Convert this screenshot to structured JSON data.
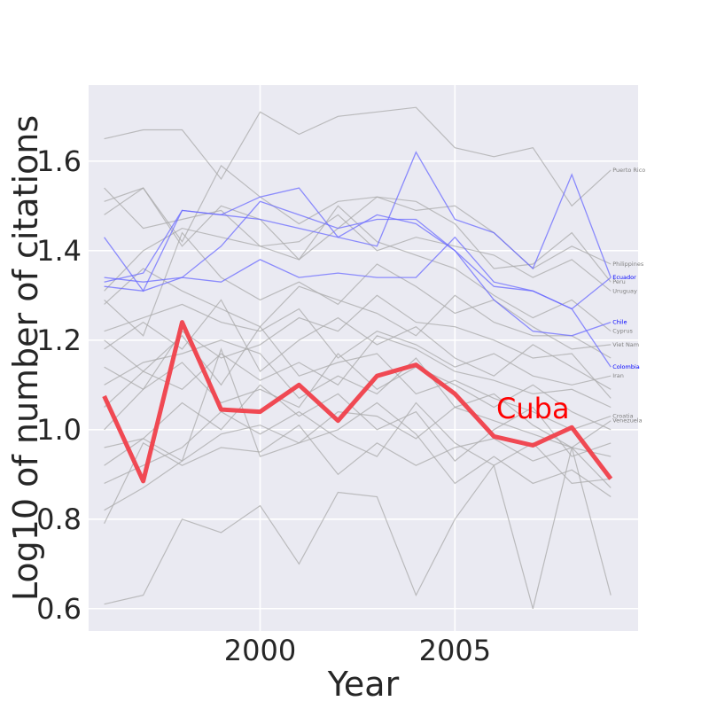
{
  "chart_data": {
    "type": "line",
    "title": "",
    "xlabel": "Year",
    "ylabel": "Log10 of number of citations",
    "x": [
      1996,
      1997,
      1998,
      1999,
      2000,
      2001,
      2002,
      2003,
      2004,
      2005,
      2006,
      2007,
      2008,
      2009
    ],
    "xlim": [
      1995.6,
      2009.7
    ],
    "ylim": [
      0.55,
      1.77
    ],
    "xticks": [
      2000,
      2005
    ],
    "xtick_labels": [
      "2000",
      "2005"
    ],
    "yticks": [
      0.6,
      0.8,
      1.0,
      1.2,
      1.4,
      1.6
    ],
    "ytick_labels": [
      "0.6",
      "0.8",
      "1.0",
      "1.2",
      "1.4",
      "1.6"
    ],
    "grid": true,
    "background": "#EAEAF2",
    "colors": {
      "gray": "#a9a9a9",
      "blue": "#6a6aff",
      "red": "#f0404a",
      "label_blue": "#0000ff",
      "label_gray": "#808080"
    },
    "highlight": {
      "name": "Cuba",
      "values": [
        1.075,
        0.885,
        1.24,
        1.045,
        1.04,
        1.1,
        1.02,
        1.12,
        1.145,
        1.08,
        0.985,
        0.965,
        1.005,
        0.89
      ],
      "label_x": 2007.0,
      "label_y": 1.025
    },
    "series": [
      {
        "name": "Puerto Rico",
        "color": "gray",
        "values": [
          1.65,
          1.67,
          1.67,
          1.56,
          1.71,
          1.66,
          1.7,
          1.71,
          1.72,
          1.63,
          1.61,
          1.63,
          1.5,
          1.58
        ]
      },
      {
        "name": "Philippines",
        "color": "gray",
        "values": [
          1.51,
          1.54,
          1.42,
          1.59,
          1.52,
          1.46,
          1.51,
          1.52,
          1.49,
          1.5,
          1.44,
          1.36,
          1.41,
          1.37
        ]
      },
      {
        "name": "Ecuador",
        "color": "blue",
        "values": [
          1.43,
          1.31,
          1.49,
          1.48,
          1.52,
          1.54,
          1.43,
          1.41,
          1.62,
          1.47,
          1.44,
          1.36,
          1.57,
          1.34
        ]
      },
      {
        "name": "Peru",
        "color": "gray",
        "values": [
          1.48,
          1.54,
          1.41,
          1.5,
          1.47,
          1.38,
          1.45,
          1.52,
          1.51,
          1.46,
          1.36,
          1.37,
          1.44,
          1.33
        ]
      },
      {
        "name": "Uruguay",
        "color": "gray",
        "values": [
          1.54,
          1.45,
          1.47,
          1.49,
          1.41,
          1.42,
          1.48,
          1.4,
          1.43,
          1.41,
          1.39,
          1.34,
          1.38,
          1.31
        ]
      },
      {
        "name": "",
        "color": "blue",
        "values": [
          1.34,
          1.33,
          1.34,
          1.33,
          1.38,
          1.34,
          1.35,
          1.34,
          1.34,
          1.43,
          1.33,
          1.31,
          1.27,
          1.34
        ]
      },
      {
        "name": "Chile",
        "color": "blue",
        "values": [
          1.33,
          1.35,
          1.49,
          1.48,
          1.47,
          1.45,
          1.43,
          1.48,
          1.46,
          1.4,
          1.29,
          1.22,
          1.21,
          1.24
        ]
      },
      {
        "name": "Cyprus",
        "color": "gray",
        "values": [
          1.31,
          1.4,
          1.45,
          1.43,
          1.41,
          1.38,
          1.5,
          1.42,
          1.39,
          1.36,
          1.3,
          1.25,
          1.29,
          1.22
        ]
      },
      {
        "name": "Viet Nam",
        "color": "gray",
        "values": [
          1.29,
          1.21,
          1.44,
          1.34,
          1.29,
          1.33,
          1.28,
          1.37,
          1.32,
          1.26,
          1.29,
          1.23,
          1.18,
          1.19
        ]
      },
      {
        "name": "Colombia",
        "color": "blue",
        "values": [
          1.32,
          1.31,
          1.34,
          1.41,
          1.51,
          1.48,
          1.45,
          1.47,
          1.47,
          1.4,
          1.32,
          1.31,
          1.27,
          1.14
        ]
      },
      {
        "name": "Iran",
        "color": "gray",
        "values": [
          1.22,
          1.25,
          1.28,
          1.24,
          1.22,
          1.27,
          1.16,
          1.22,
          1.19,
          1.14,
          1.17,
          1.12,
          1.1,
          1.12
        ]
      },
      {
        "name": "Croatia",
        "color": "gray",
        "values": [
          1.2,
          1.13,
          1.21,
          1.1,
          1.23,
          1.12,
          1.15,
          1.17,
          1.08,
          1.11,
          1.07,
          1.04,
          1.0,
          1.03
        ]
      },
      {
        "name": "Venezuela",
        "color": "gray",
        "values": [
          1.1,
          1.15,
          1.17,
          1.2,
          1.17,
          1.07,
          1.12,
          1.08,
          1.16,
          1.05,
          1.08,
          1.01,
          0.96,
          1.02
        ]
      },
      {
        "name": "",
        "color": "gray",
        "values": [
          1.28,
          1.36,
          1.31,
          1.27,
          1.23,
          1.32,
          1.29,
          1.26,
          1.21,
          1.3,
          1.24,
          1.21,
          1.21,
          1.16
        ]
      },
      {
        "name": "",
        "color": "gray",
        "values": [
          1.18,
          1.24,
          1.18,
          1.29,
          1.13,
          1.2,
          1.25,
          1.19,
          1.23,
          1.16,
          1.12,
          1.19,
          1.14,
          1.09
        ]
      },
      {
        "name": "",
        "color": "gray",
        "values": [
          1.14,
          1.09,
          1.22,
          1.16,
          1.19,
          1.25,
          1.22,
          1.3,
          1.24,
          1.23,
          1.2,
          1.16,
          1.17,
          1.07
        ]
      },
      {
        "name": "",
        "color": "gray",
        "values": [
          1.05,
          1.13,
          1.09,
          1.17,
          1.11,
          1.15,
          1.1,
          1.21,
          1.18,
          1.13,
          1.11,
          1.08,
          1.09,
          1.05
        ]
      },
      {
        "name": "",
        "color": "gray",
        "values": [
          1.0,
          1.09,
          1.15,
          1.06,
          1.09,
          1.05,
          1.17,
          1.09,
          1.14,
          1.1,
          1.05,
          1.1,
          1.04,
          1.0
        ]
      },
      {
        "name": "",
        "color": "gray",
        "values": [
          0.96,
          0.98,
          0.93,
          1.18,
          0.94,
          0.97,
          1.04,
          1.03,
          0.98,
          1.05,
          1.02,
          0.99,
          0.96,
          0.94
        ]
      },
      {
        "name": "",
        "color": "gray",
        "values": [
          0.92,
          0.98,
          1.06,
          1.0,
          1.1,
          1.03,
          1.08,
          1.0,
          1.04,
          0.93,
          1.0,
          1.05,
          0.94,
          0.97
        ]
      },
      {
        "name": "",
        "color": "gray",
        "values": [
          0.88,
          0.92,
          0.96,
          1.04,
          0.99,
          1.04,
          0.98,
          0.94,
          1.06,
          0.97,
          0.92,
          0.97,
          0.88,
          0.89
        ]
      },
      {
        "name": "",
        "color": "gray",
        "values": [
          0.82,
          0.87,
          0.93,
          0.99,
          1.01,
          0.97,
          1.0,
          1.06,
          0.99,
          0.88,
          0.94,
          0.88,
          0.91,
          0.85
        ]
      },
      {
        "name": "",
        "color": "gray",
        "values": [
          0.79,
          0.97,
          0.92,
          0.96,
          0.95,
          1.01,
          0.9,
          0.97,
          0.92,
          0.96,
          0.98,
          0.93,
          0.96,
          0.87
        ]
      },
      {
        "name": "",
        "color": "gray",
        "values": [
          0.61,
          0.63,
          0.8,
          0.77,
          0.83,
          0.7,
          0.86,
          0.85,
          0.63,
          0.8,
          0.92,
          0.6,
          0.96,
          0.63
        ]
      }
    ]
  }
}
